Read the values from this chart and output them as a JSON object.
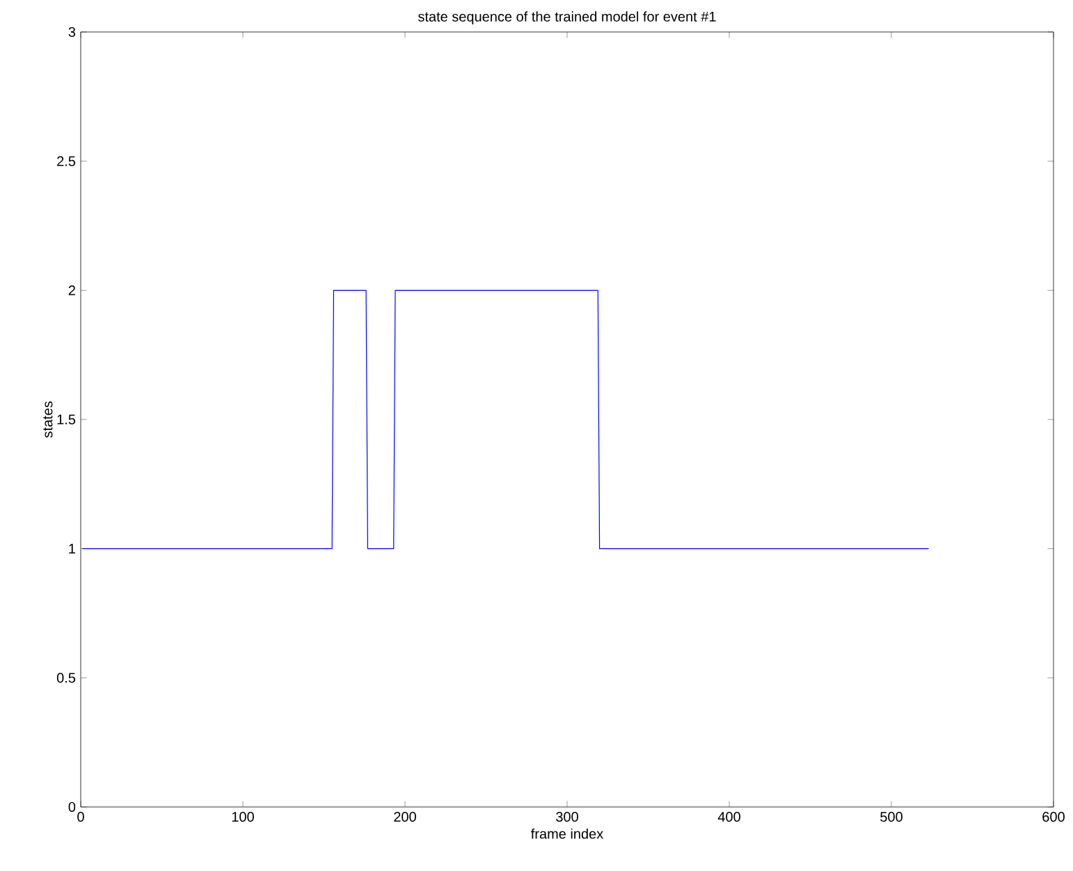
{
  "chart_data": {
    "type": "line",
    "title": "state sequence of the trained model for event #1",
    "xlabel": "frame index",
    "ylabel": "states",
    "series": [
      {
        "color": "#0000ff",
        "x": [
          1,
          155,
          156,
          176,
          177,
          193,
          194,
          319,
          320,
          523
        ],
        "values": [
          1,
          1,
          2,
          2,
          1,
          1,
          2,
          2,
          1,
          1
        ]
      }
    ],
    "xlim": [
      0,
      600
    ],
    "ylim": [
      0,
      3
    ],
    "xticks": [
      0,
      100,
      200,
      300,
      400,
      500,
      600
    ],
    "yticks": [
      0,
      0.5,
      1,
      1.5,
      2,
      2.5,
      3
    ],
    "grid": false,
    "marker": "none",
    "line_style": "solid"
  }
}
